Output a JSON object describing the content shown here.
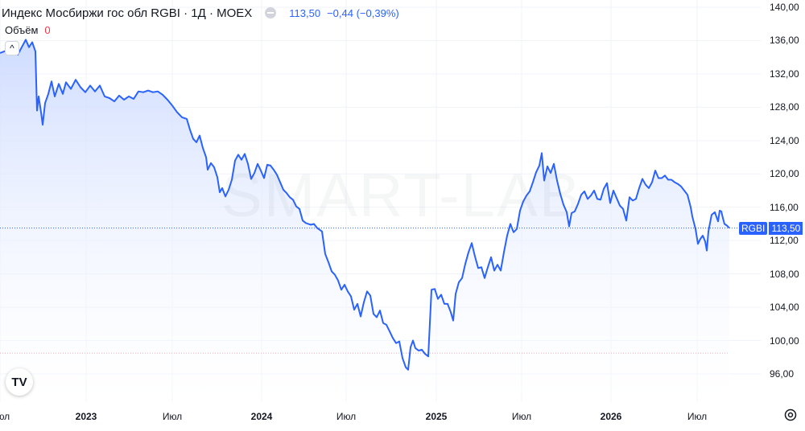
{
  "header": {
    "title": "Индекс Мосбиржи гос обл RGBI · 1Д · MOEX",
    "price": "113,50",
    "change": "−0,44 (−0,39%)"
  },
  "volume": {
    "label": "Объём",
    "value": "0"
  },
  "collapse_icon": "^",
  "logo_text": "TV",
  "watermark": "SMART-LAB",
  "price_tag": {
    "name": "RGBI",
    "value": "113,50"
  },
  "colors": {
    "line": "#2962ff",
    "fill_top": "#c9d8ff",
    "fill_bottom": "#ffffff",
    "accent": "#2962ff"
  },
  "chart_data": {
    "type": "area",
    "x_ticks": [
      "Июл",
      "2023",
      "Июл",
      "2024",
      "Июл",
      "2025",
      "Июл",
      "2026",
      "Июл"
    ],
    "ylim": [
      93,
      140
    ],
    "y_ticks": [
      "140,00",
      "136,00",
      "132,00",
      "128,00",
      "124,00",
      "120,00",
      "116,00",
      "112,00",
      "108,00",
      "104,00",
      "100,00",
      "96,00"
    ],
    "current_value": 113.5,
    "reference_line": 98.5,
    "series": [
      {
        "values": [
          [
            0,
            134.5
          ],
          [
            8,
            134.8
          ],
          [
            14,
            135.6
          ],
          [
            22,
            134.3
          ],
          [
            27,
            135.2
          ],
          [
            32,
            136.1
          ],
          [
            36,
            135.2
          ],
          [
            40,
            135.8
          ],
          [
            44,
            134.7
          ],
          [
            46,
            127.6
          ],
          [
            48,
            129.3
          ],
          [
            51,
            127.4
          ],
          [
            53,
            125.9
          ],
          [
            56,
            128.5
          ],
          [
            60,
            129.6
          ],
          [
            64,
            131.1
          ],
          [
            68,
            129.3
          ],
          [
            73,
            130.8
          ],
          [
            78,
            129.6
          ],
          [
            82,
            131.0
          ],
          [
            88,
            130.2
          ],
          [
            94,
            131.3
          ],
          [
            100,
            130.4
          ],
          [
            106,
            129.8
          ],
          [
            112,
            130.6
          ],
          [
            118,
            129.9
          ],
          [
            124,
            130.6
          ],
          [
            130,
            129.3
          ],
          [
            136,
            129.1
          ],
          [
            142,
            128.7
          ],
          [
            148,
            129.4
          ],
          [
            154,
            128.9
          ],
          [
            160,
            129.3
          ],
          [
            166,
            129.0
          ],
          [
            172,
            129.9
          ],
          [
            178,
            129.8
          ],
          [
            184,
            130.0
          ],
          [
            190,
            129.8
          ],
          [
            196,
            129.9
          ],
          [
            202,
            129.5
          ],
          [
            208,
            128.9
          ],
          [
            214,
            128.2
          ],
          [
            220,
            127.4
          ],
          [
            226,
            126.8
          ],
          [
            232,
            126.6
          ],
          [
            236,
            125.3
          ],
          [
            240,
            124.2
          ],
          [
            244,
            123.8
          ],
          [
            248,
            124.6
          ],
          [
            252,
            123.1
          ],
          [
            256,
            122.0
          ],
          [
            258,
            120.5
          ],
          [
            262,
            121.3
          ],
          [
            266,
            120.8
          ],
          [
            270,
            119.6
          ],
          [
            273,
            117.8
          ],
          [
            276,
            118.3
          ],
          [
            280,
            117.3
          ],
          [
            284,
            118.1
          ],
          [
            288,
            119.3
          ],
          [
            292,
            121.6
          ],
          [
            296,
            122.3
          ],
          [
            300,
            121.7
          ],
          [
            304,
            122.4
          ],
          [
            308,
            121.2
          ],
          [
            312,
            119.4
          ],
          [
            316,
            120.1
          ],
          [
            320,
            121.2
          ],
          [
            324,
            120.4
          ],
          [
            328,
            119.5
          ],
          [
            332,
            121.1
          ],
          [
            336,
            121.0
          ],
          [
            340,
            120.5
          ],
          [
            344,
            119.9
          ],
          [
            348,
            119.0
          ],
          [
            352,
            118.1
          ],
          [
            356,
            117.7
          ],
          [
            360,
            117.2
          ],
          [
            364,
            116.9
          ],
          [
            368,
            116.1
          ],
          [
            372,
            115.8
          ],
          [
            376,
            114.4
          ],
          [
            380,
            114.1
          ],
          [
            386,
            113.9
          ],
          [
            390,
            114.0
          ],
          [
            394,
            113.5
          ],
          [
            400,
            113.1
          ],
          [
            404,
            110.4
          ],
          [
            408,
            109.4
          ],
          [
            412,
            108.3
          ],
          [
            416,
            107.9
          ],
          [
            420,
            107.2
          ],
          [
            424,
            106.1
          ],
          [
            428,
            106.7
          ],
          [
            432,
            105.9
          ],
          [
            436,
            105.3
          ],
          [
            440,
            103.7
          ],
          [
            444,
            104.4
          ],
          [
            448,
            102.9
          ],
          [
            452,
            104.6
          ],
          [
            456,
            105.9
          ],
          [
            460,
            105.4
          ],
          [
            464,
            103.2
          ],
          [
            468,
            102.8
          ],
          [
            472,
            103.6
          ],
          [
            476,
            102.1
          ],
          [
            480,
            101.9
          ],
          [
            484,
            101.1
          ],
          [
            488,
            100.3
          ],
          [
            492,
            99.7
          ],
          [
            496,
            99.9
          ],
          [
            500,
            97.9
          ],
          [
            504,
            96.8
          ],
          [
            507,
            96.5
          ],
          [
            510,
            99.2
          ],
          [
            513,
            100.0
          ],
          [
            516,
            99.1
          ],
          [
            520,
            98.8
          ],
          [
            524,
            98.9
          ],
          [
            528,
            98.4
          ],
          [
            532,
            98.1
          ],
          [
            536,
            106.1
          ],
          [
            540,
            106.2
          ],
          [
            544,
            105.0
          ],
          [
            548,
            105.5
          ],
          [
            552,
            104.4
          ],
          [
            556,
            104.4
          ],
          [
            560,
            103.4
          ],
          [
            563,
            102.4
          ],
          [
            566,
            105.6
          ],
          [
            570,
            107.0
          ],
          [
            574,
            107.5
          ],
          [
            578,
            109.2
          ],
          [
            582,
            110.6
          ],
          [
            586,
            111.7
          ],
          [
            590,
            110.1
          ],
          [
            594,
            108.7
          ],
          [
            598,
            108.8
          ],
          [
            602,
            107.5
          ],
          [
            606,
            108.8
          ],
          [
            610,
            110.0
          ],
          [
            614,
            108.4
          ],
          [
            618,
            109.1
          ],
          [
            622,
            108.4
          ],
          [
            626,
            110.6
          ],
          [
            630,
            112.6
          ],
          [
            634,
            114.0
          ],
          [
            638,
            113.0
          ],
          [
            642,
            113.4
          ],
          [
            646,
            115.6
          ],
          [
            650,
            116.7
          ],
          [
            654,
            117.4
          ],
          [
            658,
            117.9
          ],
          [
            662,
            119.0
          ],
          [
            666,
            120.2
          ],
          [
            670,
            121.0
          ],
          [
            673,
            122.5
          ],
          [
            676,
            119.2
          ],
          [
            680,
            120.9
          ],
          [
            684,
            120.1
          ],
          [
            688,
            121.2
          ],
          [
            692,
            119.2
          ],
          [
            696,
            117.6
          ],
          [
            700,
            116.3
          ],
          [
            704,
            115.4
          ],
          [
            707,
            113.7
          ],
          [
            710,
            115.3
          ],
          [
            714,
            115.5
          ],
          [
            718,
            116.4
          ],
          [
            722,
            117.5
          ],
          [
            726,
            117.9
          ],
          [
            730,
            117.0
          ],
          [
            734,
            117.4
          ],
          [
            738,
            118.0
          ],
          [
            742,
            117.0
          ],
          [
            746,
            116.9
          ],
          [
            750,
            118.2
          ],
          [
            754,
            118.9
          ],
          [
            758,
            116.5
          ],
          [
            762,
            118.0
          ],
          [
            766,
            117.1
          ],
          [
            770,
            116.2
          ],
          [
            774,
            115.8
          ],
          [
            778,
            114.4
          ],
          [
            782,
            117.2
          ],
          [
            786,
            116.8
          ],
          [
            790,
            117.0
          ],
          [
            794,
            118.3
          ],
          [
            798,
            119.4
          ],
          [
            802,
            118.7
          ],
          [
            806,
            118.3
          ],
          [
            810,
            119.0
          ],
          [
            814,
            120.4
          ],
          [
            818,
            119.5
          ],
          [
            822,
            119.5
          ],
          [
            826,
            119.8
          ],
          [
            830,
            119.3
          ],
          [
            834,
            119.3
          ],
          [
            838,
            119.0
          ],
          [
            842,
            118.8
          ],
          [
            846,
            118.5
          ],
          [
            850,
            118.0
          ],
          [
            854,
            117.5
          ],
          [
            858,
            116.0
          ],
          [
            860,
            114.9
          ],
          [
            864,
            113.4
          ],
          [
            867,
            111.6
          ],
          [
            870,
            112.2
          ],
          [
            873,
            112.6
          ],
          [
            876,
            111.9
          ],
          [
            878,
            110.8
          ],
          [
            880,
            113.1
          ],
          [
            884,
            115.1
          ],
          [
            888,
            115.4
          ],
          [
            892,
            114.3
          ],
          [
            894,
            115.6
          ],
          [
            896,
            115.5
          ],
          [
            898,
            114.7
          ],
          [
            900,
            114.0
          ],
          [
            903,
            113.8
          ],
          [
            906,
            113.5
          ]
        ]
      }
    ]
  }
}
